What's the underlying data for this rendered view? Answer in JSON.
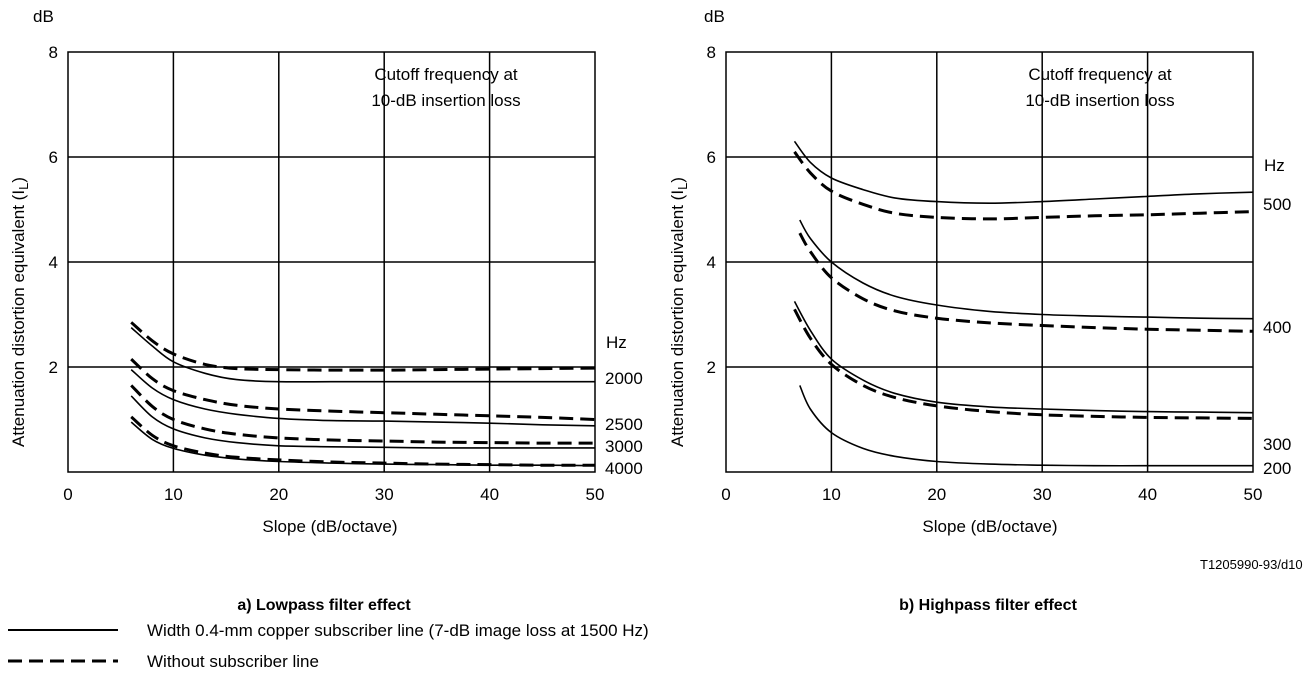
{
  "chart_data": [
    {
      "type": "line",
      "caption": "a) Lowpass filter effect",
      "xlabel": "Slope (dB/octave)",
      "ylabel": "Attenuation distortion equivalent (I",
      "ylabel_sub": "L",
      "ylabel_close": ")",
      "yunit": "dB",
      "xlim": [
        0,
        50
      ],
      "ylim": [
        0,
        8
      ],
      "xticks": [
        "0",
        "10",
        "20",
        "30",
        "40",
        "50"
      ],
      "yticks": [
        "2",
        "4",
        "6",
        "8"
      ],
      "grid": true,
      "annotation": [
        "Cutoff frequency at",
        "10-dB insertion loss"
      ],
      "hz_header": "Hz",
      "series": [
        {
          "label": "2000",
          "style": "solid",
          "x": [
            6,
            8,
            10,
            13,
            16,
            20,
            25,
            30,
            35,
            40,
            45,
            50
          ],
          "y": [
            2.75,
            2.4,
            2.1,
            1.88,
            1.76,
            1.72,
            1.72,
            1.72,
            1.72,
            1.72,
            1.72,
            1.72
          ]
        },
        {
          "label": "2000",
          "style": "dashed",
          "x": [
            6,
            8,
            10,
            13,
            16,
            20,
            25,
            30,
            35,
            40,
            45,
            50
          ],
          "y": [
            2.85,
            2.5,
            2.25,
            2.05,
            1.97,
            1.95,
            1.94,
            1.94,
            1.95,
            1.96,
            1.97,
            1.98
          ]
        },
        {
          "label": "2500",
          "style": "solid",
          "x": [
            6,
            8,
            10,
            13,
            16,
            20,
            25,
            30,
            35,
            40,
            45,
            50
          ],
          "y": [
            1.95,
            1.6,
            1.38,
            1.2,
            1.1,
            1.02,
            0.98,
            0.97,
            0.95,
            0.93,
            0.9,
            0.88
          ]
        },
        {
          "label": "2500",
          "style": "dashed",
          "x": [
            6,
            8,
            10,
            13,
            16,
            20,
            25,
            30,
            35,
            40,
            45,
            50
          ],
          "y": [
            2.15,
            1.78,
            1.55,
            1.38,
            1.27,
            1.2,
            1.16,
            1.13,
            1.1,
            1.07,
            1.04,
            1.0
          ]
        },
        {
          "label": "3000",
          "style": "solid",
          "x": [
            6,
            8,
            10,
            13,
            16,
            20,
            25,
            30,
            35,
            40,
            45,
            50
          ],
          "y": [
            1.45,
            1.05,
            0.82,
            0.65,
            0.56,
            0.5,
            0.48,
            0.47,
            0.46,
            0.46,
            0.46,
            0.46
          ]
        },
        {
          "label": "3000",
          "style": "dashed",
          "x": [
            6,
            8,
            10,
            13,
            16,
            20,
            25,
            30,
            35,
            40,
            45,
            50
          ],
          "y": [
            1.65,
            1.25,
            1.0,
            0.82,
            0.72,
            0.65,
            0.61,
            0.59,
            0.57,
            0.56,
            0.55,
            0.55
          ]
        },
        {
          "label": "4000",
          "style": "solid",
          "x": [
            6,
            8,
            10,
            13,
            16,
            20,
            25,
            30,
            35,
            40,
            45,
            50
          ],
          "y": [
            0.95,
            0.62,
            0.45,
            0.32,
            0.25,
            0.2,
            0.17,
            0.15,
            0.14,
            0.13,
            0.13,
            0.12
          ]
        },
        {
          "label": "4000",
          "style": "dashed",
          "x": [
            6,
            8,
            10,
            13,
            16,
            20,
            25,
            30,
            35,
            40,
            45,
            50
          ],
          "y": [
            1.05,
            0.7,
            0.5,
            0.36,
            0.28,
            0.23,
            0.19,
            0.17,
            0.15,
            0.14,
            0.13,
            0.13
          ]
        }
      ]
    },
    {
      "type": "line",
      "caption": "b) Highpass filter effect",
      "xlabel": "Slope (dB/octave)",
      "ylabel": "Attenuation distortion equivalent (I",
      "ylabel_sub": "L",
      "ylabel_close": ")",
      "yunit": "dB",
      "xlim": [
        0,
        50
      ],
      "ylim": [
        0,
        8
      ],
      "xticks": [
        "0",
        "10",
        "20",
        "30",
        "40",
        "50"
      ],
      "yticks": [
        "2",
        "4",
        "6",
        "8"
      ],
      "grid": true,
      "annotation": [
        "Cutoff frequency at",
        "10-dB insertion loss"
      ],
      "hz_header": "Hz",
      "series": [
        {
          "label": "500",
          "style": "solid",
          "x": [
            6.5,
            8,
            10,
            13,
            16,
            20,
            25,
            30,
            35,
            40,
            45,
            50
          ],
          "y": [
            6.3,
            5.9,
            5.6,
            5.38,
            5.22,
            5.15,
            5.12,
            5.15,
            5.2,
            5.25,
            5.3,
            5.33
          ]
        },
        {
          "label": "500",
          "style": "dashed",
          "x": [
            6.5,
            8,
            10,
            13,
            16,
            20,
            25,
            30,
            35,
            40,
            45,
            50
          ],
          "y": [
            6.1,
            5.7,
            5.35,
            5.1,
            4.93,
            4.85,
            4.82,
            4.85,
            4.88,
            4.9,
            4.93,
            4.96
          ]
        },
        {
          "label": "400",
          "style": "solid",
          "x": [
            7,
            8,
            10,
            13,
            16,
            20,
            25,
            30,
            35,
            40,
            45,
            50
          ],
          "y": [
            4.8,
            4.45,
            4.0,
            3.6,
            3.35,
            3.18,
            3.06,
            3.0,
            2.97,
            2.95,
            2.93,
            2.92
          ]
        },
        {
          "label": "400",
          "style": "dashed",
          "x": [
            7,
            8,
            10,
            13,
            16,
            20,
            25,
            30,
            35,
            40,
            45,
            50
          ],
          "y": [
            4.55,
            4.2,
            3.7,
            3.3,
            3.07,
            2.93,
            2.84,
            2.79,
            2.75,
            2.72,
            2.7,
            2.68
          ]
        },
        {
          "label": "300",
          "style": "solid",
          "x": [
            6.5,
            8,
            10,
            13,
            16,
            20,
            25,
            30,
            35,
            40,
            45,
            50
          ],
          "y": [
            3.25,
            2.7,
            2.15,
            1.75,
            1.5,
            1.33,
            1.24,
            1.2,
            1.17,
            1.15,
            1.14,
            1.13
          ]
        },
        {
          "label": "300",
          "style": "dashed",
          "x": [
            6.5,
            8,
            10,
            13,
            16,
            20,
            25,
            30,
            35,
            40,
            45,
            50
          ],
          "y": [
            3.1,
            2.55,
            2.05,
            1.65,
            1.42,
            1.26,
            1.15,
            1.09,
            1.06,
            1.04,
            1.03,
            1.02
          ]
        },
        {
          "label": "200",
          "style": "solid",
          "x": [
            7,
            8,
            10,
            13,
            16,
            20,
            25,
            30,
            35,
            40,
            45,
            50
          ],
          "y": [
            1.65,
            1.2,
            0.75,
            0.45,
            0.3,
            0.2,
            0.15,
            0.13,
            0.12,
            0.12,
            0.12,
            0.12
          ]
        }
      ]
    }
  ],
  "legend": [
    {
      "style": "solid",
      "label": "Width 0.4-mm copper subscriber line (7-dB image loss at 1500 Hz)"
    },
    {
      "style": "dashed",
      "label": "Without subscriber line"
    }
  ],
  "figure_ref": "T1205990-93/d10"
}
